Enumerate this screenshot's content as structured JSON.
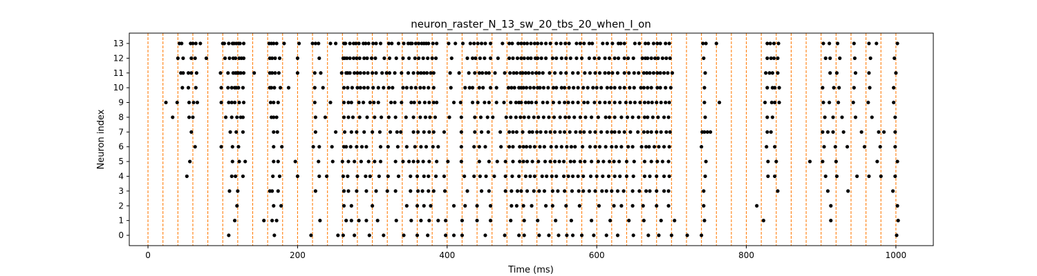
{
  "chart_data": {
    "type": "scatter",
    "title": "neuron_raster_N_13_sw_20_tbs_20_when_I_on",
    "xlabel": "Time (ms)",
    "ylabel": "Neuron index",
    "xlim": [
      -25,
      1050
    ],
    "ylim": [
      -0.7,
      13.7
    ],
    "x_ticks": [
      0,
      200,
      400,
      600,
      800,
      1000
    ],
    "y_ticks": [
      0,
      1,
      2,
      3,
      4,
      5,
      6,
      7,
      8,
      9,
      10,
      11,
      12,
      13
    ],
    "grid": false,
    "marker_color": "#000000",
    "vline_color": "#ff7f0e",
    "vline_style": "dashed",
    "vlines_x": [
      0,
      20,
      40,
      60,
      80,
      100,
      120,
      140,
      160,
      180,
      200,
      220,
      240,
      260,
      280,
      300,
      320,
      340,
      360,
      380,
      400,
      420,
      440,
      460,
      480,
      500,
      520,
      540,
      560,
      580,
      600,
      620,
      640,
      660,
      680,
      700,
      720,
      740,
      760,
      780,
      800,
      820,
      840,
      860,
      880,
      900,
      920,
      940,
      960,
      980,
      1000
    ],
    "spikes": [
      {
        "neuron": 13,
        "times": [
          42,
          45,
          57,
          60,
          64,
          70,
          100,
          102,
          108,
          113,
          115,
          118,
          121,
          123,
          128,
          162,
          165,
          168,
          172,
          182,
          202,
          220,
          224,
          228,
          244,
          251,
          262,
          264,
          270,
          275,
          278,
          282,
          288,
          291,
          295,
          301,
          305,
          311,
          322,
          326,
          335,
          342,
          348,
          351,
          353,
          358,
          362,
          366,
          369,
          372,
          375,
          381,
          386,
          402,
          411,
          421,
          431,
          436,
          441,
          446,
          451,
          458,
          474,
          483,
          487,
          495,
          499,
          503,
          507,
          512,
          517,
          521,
          526,
          532,
          538,
          546,
          552,
          558,
          563,
          573,
          578,
          583,
          590,
          594,
          608,
          614,
          621,
          629,
          632,
          637,
          651,
          657,
          665,
          669,
          676,
          681,
          685,
          692,
          697,
          742,
          746,
          760,
          828,
          832,
          837,
          843,
          903,
          911,
          922,
          944,
          964,
          974,
          1002
        ]
      },
      {
        "neuron": 12,
        "times": [
          40,
          47,
          58,
          63,
          78,
          103,
          109,
          114,
          117,
          122,
          125,
          128,
          163,
          166,
          170,
          176,
          200,
          229,
          261,
          263,
          266,
          270,
          275,
          279,
          283,
          289,
          293,
          299,
          304,
          316,
          323,
          332,
          341,
          349,
          357,
          362,
          368,
          374,
          380,
          385,
          406,
          427,
          434,
          438,
          444,
          450,
          458,
          468,
          483,
          488,
          494,
          499,
          503,
          508,
          512,
          518,
          521,
          526,
          532,
          541,
          546,
          553,
          559,
          565,
          573,
          580,
          590,
          597,
          603,
          611,
          617,
          624,
          629,
          637,
          642,
          649,
          661,
          665,
          668,
          673,
          678,
          682,
          688,
          693,
          698,
          743,
          828,
          833,
          837,
          842,
          906,
          912,
          925,
          945,
          966,
          998
        ]
      },
      {
        "neuron": 11,
        "times": [
          44,
          47,
          54,
          58,
          65,
          97,
          107,
          114,
          117,
          119,
          121,
          124,
          128,
          142,
          163,
          166,
          170,
          175,
          200,
          223,
          231,
          259,
          265,
          267,
          270,
          276,
          280,
          284,
          289,
          294,
          300,
          305,
          313,
          319,
          323,
          330,
          339,
          348,
          355,
          361,
          365,
          369,
          373,
          378,
          382,
          404,
          416,
          429,
          437,
          443,
          447,
          452,
          456,
          464,
          477,
          484,
          489,
          493,
          498,
          501,
          505,
          509,
          514,
          519,
          523,
          528,
          537,
          544,
          552,
          559,
          568,
          575,
          584,
          591,
          598,
          604,
          611,
          616,
          621,
          628,
          637,
          643,
          650,
          656,
          663,
          667,
          671,
          676,
          681,
          685,
          690,
          695,
          701,
          745,
          826,
          831,
          835,
          842,
          912,
          921,
          946,
          964,
          1000
        ]
      },
      {
        "neuron": 10,
        "times": [
          46,
          54,
          64,
          98,
          107,
          112,
          116,
          118,
          121,
          127,
          163,
          165,
          169,
          177,
          188,
          223,
          234,
          262,
          267,
          273,
          280,
          284,
          289,
          294,
          301,
          308,
          315,
          322,
          327,
          341,
          346,
          352,
          358,
          364,
          369,
          375,
          382,
          405,
          424,
          430,
          434,
          443,
          448,
          458,
          466,
          482,
          486,
          490,
          496,
          499,
          502,
          506,
          511,
          516,
          521,
          524,
          529,
          535,
          542,
          546,
          553,
          557,
          563,
          569,
          575,
          582,
          588,
          595,
          600,
          606,
          614,
          619,
          624,
          631,
          637,
          644,
          650,
          659,
          663,
          668,
          673,
          681,
          685,
          692,
          699,
          744,
          828,
          835,
          838,
          844,
          902,
          917,
          924,
          944,
          965,
          997
        ]
      },
      {
        "neuron": 9,
        "times": [
          24,
          39,
          55,
          61,
          66,
          98,
          108,
          112,
          116,
          122,
          128,
          164,
          168,
          174,
          223,
          244,
          262,
          268,
          272,
          282,
          288,
          297,
          302,
          308,
          325,
          330,
          339,
          352,
          356,
          363,
          370,
          376,
          382,
          386,
          409,
          418,
          434,
          441,
          450,
          456,
          466,
          476,
          485,
          492,
          496,
          499,
          505,
          509,
          513,
          519,
          528,
          534,
          542,
          550,
          557,
          562,
          568,
          575,
          583,
          588,
          597,
          604,
          611,
          617,
          624,
          631,
          639,
          645,
          651,
          658,
          664,
          669,
          674,
          680,
          686,
          692,
          697,
          744,
          764,
          825,
          834,
          838,
          844,
          903,
          911,
          923,
          943,
          963,
          997
        ]
      },
      {
        "neuron": 8,
        "times": [
          33,
          55,
          60,
          104,
          112,
          119,
          124,
          127,
          165,
          168,
          172,
          224,
          237,
          262,
          268,
          274,
          283,
          293,
          303,
          312,
          322,
          331,
          345,
          355,
          364,
          371,
          377,
          384,
          403,
          419,
          437,
          445,
          454,
          461,
          479,
          485,
          492,
          498,
          503,
          509,
          516,
          522,
          529,
          536,
          543,
          551,
          558,
          563,
          570,
          578,
          585,
          593,
          602,
          612,
          617,
          624,
          633,
          641,
          648,
          656,
          664,
          668,
          675,
          682,
          690,
          696,
          745,
          828,
          835,
          905,
          916,
          928,
          946,
          968,
          999
        ]
      },
      {
        "neuron": 7,
        "times": [
          58,
          110,
          118,
          127,
          168,
          173,
          224,
          251,
          263,
          272,
          279,
          289,
          300,
          310,
          324,
          333,
          338,
          355,
          361,
          369,
          376,
          382,
          396,
          419,
          437,
          446,
          455,
          471,
          483,
          488,
          493,
          501,
          510,
          514,
          520,
          525,
          532,
          538,
          544,
          551,
          557,
          564,
          572,
          578,
          583,
          591,
          598,
          606,
          614,
          620,
          624,
          630,
          637,
          645,
          655,
          663,
          668,
          673,
          680,
          686,
          693,
          698,
          741,
          744,
          748,
          752,
          828,
          833,
          902,
          909,
          916,
          930,
          954,
          977,
          984,
          999
        ]
      },
      {
        "neuron": 6,
        "times": [
          63,
          98,
          113,
          121,
          168,
          179,
          221,
          229,
          246,
          262,
          265,
          271,
          279,
          286,
          292,
          311,
          321,
          334,
          346,
          357,
          365,
          372,
          381,
          388,
          419,
          436,
          443,
          451,
          472,
          483,
          488,
          497,
          502,
          506,
          511,
          517,
          524,
          530,
          539,
          546,
          553,
          560,
          566,
          571,
          581,
          591,
          598,
          604,
          612,
          620,
          626,
          633,
          642,
          648,
          660,
          666,
          670,
          677,
          683,
          690,
          697,
          740,
          827,
          838,
          904,
          919,
          935,
          958,
          979,
          999
        ]
      },
      {
        "neuron": 5,
        "times": [
          56,
          113,
          122,
          130,
          168,
          174,
          197,
          228,
          247,
          260,
          268,
          276,
          285,
          295,
          303,
          311,
          331,
          341,
          349,
          355,
          361,
          368,
          376,
          386,
          401,
          419,
          443,
          456,
          467,
          478,
          488,
          497,
          502,
          507,
          514,
          522,
          531,
          538,
          544,
          550,
          556,
          565,
          570,
          578,
          584,
          593,
          602,
          609,
          617,
          623,
          630,
          640,
          650,
          664,
          673,
          681,
          688,
          696,
          746,
          829,
          840,
          885,
          902,
          920,
          975,
          1002
        ]
      },
      {
        "neuron": 4,
        "times": [
          52,
          112,
          117,
          127,
          167,
          176,
          200,
          229,
          239,
          261,
          267,
          280,
          291,
          297,
          309,
          321,
          335,
          351,
          360,
          369,
          375,
          385,
          396,
          423,
          436,
          444,
          452,
          463,
          478,
          487,
          496,
          505,
          511,
          517,
          527,
          533,
          540,
          546,
          556,
          562,
          568,
          575,
          582,
          592,
          600,
          608,
          616,
          624,
          631,
          640,
          649,
          664,
          671,
          680,
          690,
          697,
          745,
          829,
          838,
          906,
          921,
          948,
          964,
          980,
          999
        ]
      },
      {
        "neuron": 3,
        "times": [
          109,
          120,
          163,
          166,
          174,
          224,
          262,
          268,
          279,
          292,
          305,
          320,
          331,
          351,
          361,
          367,
          375,
          382,
          397,
          427,
          446,
          456,
          478,
          486,
          494,
          499,
          507,
          516,
          523,
          530,
          541,
          548,
          557,
          567,
          576,
          582,
          590,
          598,
          607,
          613,
          620,
          628,
          636,
          648,
          657,
          666,
          671,
          680,
          690,
          696,
          743,
          842,
          909,
          936,
          996
        ]
      },
      {
        "neuron": 2,
        "times": [
          119,
          168,
          178,
          262,
          272,
          300,
          346,
          360,
          369,
          378,
          409,
          424,
          440,
          458,
          486,
          493,
          502,
          513,
          532,
          541,
          559,
          577,
          603,
          623,
          633,
          648,
          662,
          680,
          696,
          743,
          814,
          913,
          1002
        ]
      },
      {
        "neuron": 1,
        "times": [
          116,
          155,
          166,
          172,
          230,
          265,
          272,
          282,
          292,
          307,
          332,
          352,
          365,
          376,
          388,
          398,
          420,
          440,
          458,
          485,
          503,
          521,
          545,
          566,
          593,
          618,
          643,
          663,
          686,
          704,
          744,
          823,
          913,
          1003
        ]
      },
      {
        "neuron": 0,
        "times": [
          108,
          169,
          218,
          254,
          261,
          276,
          296,
          315,
          342,
          360,
          374,
          398,
          409,
          420,
          451,
          477,
          496,
          503,
          523,
          536,
          549,
          560,
          568,
          580,
          596,
          613,
          628,
          649,
          669,
          683,
          700,
          721,
          740,
          1001
        ]
      }
    ]
  }
}
